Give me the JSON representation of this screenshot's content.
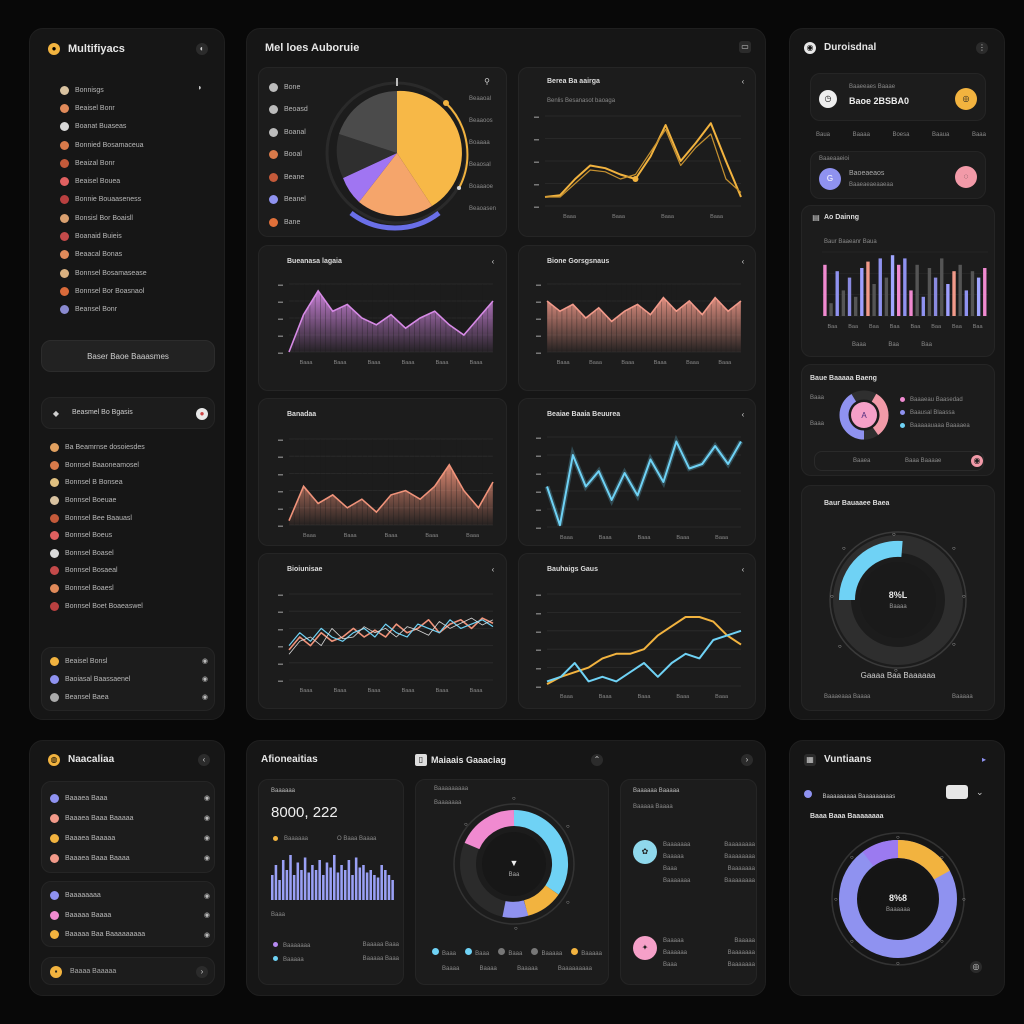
{
  "left_panel": {
    "title": "Multifiyacs",
    "nav_items": [
      "Bonnisgs",
      "Beaisel Bonr",
      "Boanat Buaseas",
      "Bonnied Bosamaceua",
      "Beaizal Bonr",
      "Beaisel Bouea",
      "Bonnie Bouaaseness",
      "Bonsisl Bor Boaisll",
      "Boanaid Buieis",
      "Beaacal Bonas",
      "Bonnsel Bosamasease",
      "Bonnsel Bor Boasnaol",
      "Beansel Bonr"
    ],
    "main_button": "Baser Baoe Baaasmes",
    "section_title": "Beasmel Bo Bgasis",
    "sub_items": [
      "Ba Beamrnse dosoiesdes",
      "Bonnsel Baaoneamosel",
      "Bonnsel B Bonsea",
      "Bonnsel Boeuae",
      "Bonnsel Bee Baauasl",
      "Bonnsel Boeus",
      "Bonnsel Boasel",
      "Bonnsel Bosaeal",
      "Bonnsel Boaesl",
      "Bonnsel Boet Boaeaswel"
    ],
    "footer_items": [
      "Beaisel Bonsl",
      "Baoiasal Baassaenel",
      "Beansel Baea"
    ]
  },
  "main_panel": {
    "title": "Mel loes Auboruie",
    "pie_card": {
      "legend": [
        "Bone",
        "Beoasd",
        "Boanal",
        "Booal",
        "Beane",
        "Beanel",
        "Bane"
      ],
      "side_labels": [
        "Beaaoal",
        "Beaaoos",
        "Boaaaa",
        "Beaosal",
        "Boaaaoe",
        "Beaoasen"
      ]
    },
    "line_card": {
      "title": "Berea Ba aairga",
      "subtitle": "Benlis Besanasot baoaga",
      "xticks": [
        "Baaa",
        "Baaa",
        "Baaa",
        "Baaa"
      ]
    },
    "area_card_1": {
      "title": "Bueanasa lagaia",
      "xticks": [
        "Baaa",
        "Baaa",
        "Baaa",
        "Baaa",
        "Baaa",
        "Baaa"
      ]
    },
    "area_card_2": {
      "title": "Bione Gorsgsnaus",
      "xticks": [
        "Baaa",
        "Baaa",
        "Baaa",
        "Baaa",
        "Baaa",
        "Baaa"
      ]
    },
    "area_card_3": {
      "title": "Banadaa",
      "xticks": [
        "Baaa",
        "Baaa",
        "Baaa",
        "Baaa",
        "Baaa"
      ]
    },
    "line_card_2": {
      "title": "Beaiae Baaia Beuurea",
      "xticks": [
        "Baaa",
        "Baaa",
        "Baaa",
        "Baaa",
        "Baaa"
      ]
    },
    "multi_card": {
      "title": "Bioiunisae",
      "xticks": [
        "Baaa",
        "Baaa",
        "Baaa",
        "Baaa",
        "Baaa",
        "Baaa"
      ]
    },
    "line_card_3": {
      "title": "Bauhaigs Gaus",
      "xticks": [
        "Baaa",
        "Baaa",
        "Baaa",
        "Baaa",
        "Baaa"
      ]
    }
  },
  "right_panel": {
    "title": "Duroisdnal",
    "card1": {
      "label": "Baaeeaes Baaae",
      "value": "Baoe 2BSBA0",
      "cols": [
        "Baua",
        "Baaaa",
        "Boesa",
        "Baaua",
        "Baaa"
      ]
    },
    "card2": {
      "label": "Baaeaaeioi",
      "name": "Baoeaeaos",
      "sub": "Baaeaeaeaaeaa"
    },
    "bar_card": {
      "title": "Ao Dainng",
      "subtitle": "Baur Baaeanr Baua",
      "xticks": [
        "Baa",
        "Baa",
        "Baa",
        "Baa",
        "Baa",
        "Baa",
        "Baa",
        "Baa"
      ],
      "legend": [
        "Baaa",
        "Baa",
        "Baa"
      ]
    },
    "donut_card": {
      "title": "Baue Baaaaa Baeng",
      "legend": [
        "Baaaeau Baasedad",
        "Baausal Blaassa",
        "Baaaaauaaa Baaaaea"
      ],
      "footer": [
        "Baaea",
        "Baaa Baaaae"
      ],
      "left_labels": [
        "Baaa",
        "Baaa"
      ]
    },
    "gauge_card": {
      "title": "Baur Bauaaee Baea",
      "value": "8%L",
      "sub": "Baaaa",
      "caption": "Gaaaa Baa Baaaaaa",
      "footer": [
        "Baaaeaaa Baaaa",
        "Baaaaa"
      ]
    }
  },
  "bottom_left": {
    "title": "Naacaliaa",
    "items": [
      "Baaaea Baaa",
      "Baaaea Baaa Baaaaa",
      "Baaaea Baaaaa",
      "Baaaea Baaa Baaaa"
    ],
    "items2": [
      "Baaaaaaaa",
      "Baaaaa Baaaa",
      "Baaaaa Baa Baaaaaaaaa"
    ],
    "footer": "Baaaa Baaaaa"
  },
  "bottom_center": {
    "title": "Afioneaitias",
    "label": "Baaaaaa",
    "value": "8000, 222",
    "sub_a": "Baaaaaa",
    "sub_b": "O Baaa Baaaa",
    "stat_label": "Baaa",
    "legend": [
      [
        "Baaaaaaa",
        "Baaaaa Baaa"
      ],
      [
        "Baaaaa",
        "Baaaaa Baaa"
      ]
    ],
    "donut_title": "Maiaais Gaaaciag",
    "donut_sub": "Baaaaaaaaa",
    "donut_sub2": "Baaaaaaa",
    "donut_center": "Baa",
    "donut_legend": [
      "Baaa",
      "Baaa",
      "Baaa",
      "Baaaaa",
      "Baaaaa"
    ],
    "donut_legend2": [
      "Baaaa",
      "Baaaa",
      "Baaaaa",
      "Baaaaaaaaa"
    ],
    "info_title": "Baaaaaa Baaaaa",
    "info_sub": "Baaaaa Baaaa",
    "info_rows": [
      [
        "Baaaaaaa",
        "Baaaaaaaa"
      ],
      [
        "Baaaaa",
        "Baaaaaaaa"
      ],
      [
        "Baaa",
        "Baaaaaaa"
      ],
      [
        "Baaaaaaa",
        "Baaaaaaaa"
      ]
    ],
    "info_rows2": [
      [
        "Baaaaa",
        "Baaaaa"
      ],
      [
        "Baaaaaa",
        "Baaaaaaa"
      ],
      [
        "Baaa",
        "Baaaaaaa"
      ]
    ]
  },
  "bottom_right": {
    "title": "Vuntiaans",
    "select": "Baaaaaaaaa Baaaaaaaaas",
    "section": "Baaa Baaa Baaaaaaaa",
    "center": "8%8",
    "center_sub": "Baaaaaa"
  },
  "colors": {
    "yellow": "#f2b33f",
    "purple": "#9b7af0",
    "salmon": "#f29a8a",
    "pink": "#f08ad0",
    "cyan": "#6fd2f5",
    "periwinkle": "#8f92f0"
  }
}
